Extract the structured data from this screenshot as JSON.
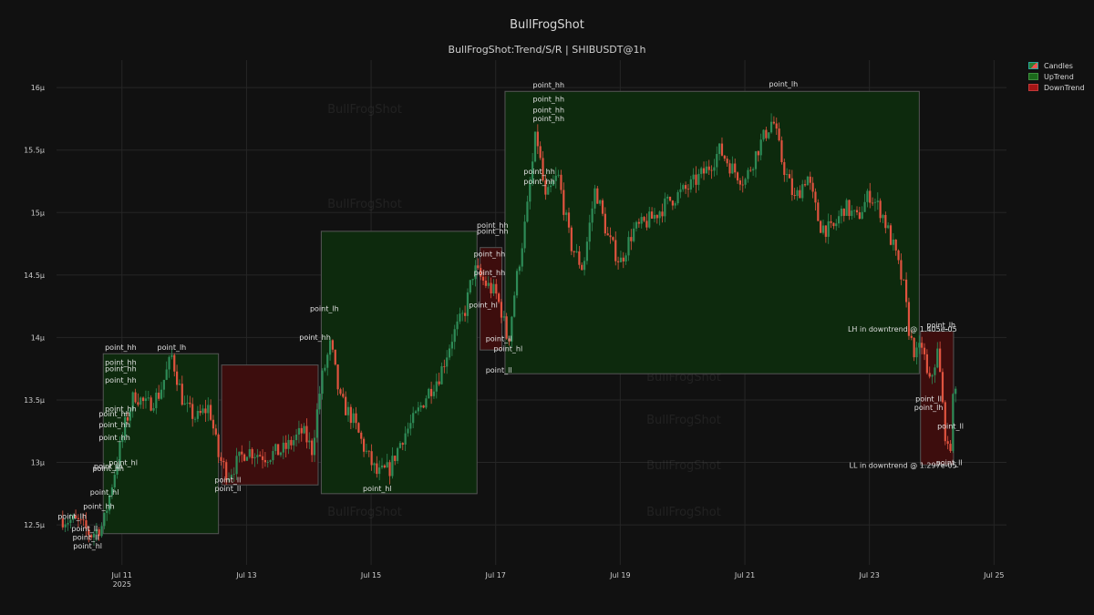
{
  "title": "BullFrogShot",
  "subtitle": "BullFrogShot:Trend/S/R | SHIBUSDT@1h",
  "watermark": "BullFrogShot",
  "legend": [
    {
      "label": "Candles",
      "kind": "candles"
    },
    {
      "label": "UpTrend",
      "kind": "up"
    },
    {
      "label": "DownTrend",
      "kind": "down"
    }
  ],
  "colors": {
    "background": "#111111",
    "grid": "#262626",
    "up_candle": "#2e8b57",
    "down_candle": "#e0533f",
    "uptrend_fill": "#0d2a0d",
    "downtrend_fill": "#3d0d0d",
    "zone_border": "#555555",
    "text": "#cccccc"
  },
  "chart_data": {
    "type": "candlestick",
    "x_ticks": [
      {
        "day": 11,
        "label": "Jul 11",
        "sublabel": "2025"
      },
      {
        "day": 13,
        "label": "Jul 13"
      },
      {
        "day": 15,
        "label": "Jul 15"
      },
      {
        "day": 17,
        "label": "Jul 17"
      },
      {
        "day": 19,
        "label": "Jul 19"
      },
      {
        "day": 21,
        "label": "Jul 21"
      },
      {
        "day": 23,
        "label": "Jul 23"
      },
      {
        "day": 25,
        "label": "Jul 25"
      }
    ],
    "x_range": [
      9.95,
      25.2
    ],
    "y_ticks": [
      {
        "value": 12.5,
        "label": "12.5µ"
      },
      {
        "value": 13.0,
        "label": "13µ"
      },
      {
        "value": 13.5,
        "label": "13.5µ"
      },
      {
        "value": 14.0,
        "label": "14µ"
      },
      {
        "value": 14.5,
        "label": "14.5µ"
      },
      {
        "value": 15.0,
        "label": "15µ"
      },
      {
        "value": 15.5,
        "label": "15.5µ"
      },
      {
        "value": 16.0,
        "label": "16µ"
      }
    ],
    "y_range": [
      12.18,
      16.22
    ],
    "y_unit": "µ",
    "trend_zones": [
      {
        "type": "up",
        "x0": 10.7,
        "x1": 12.55,
        "y0": 12.43,
        "y1": 13.87
      },
      {
        "type": "down",
        "x0": 12.6,
        "x1": 14.15,
        "y0": 12.82,
        "y1": 13.78
      },
      {
        "type": "up",
        "x0": 14.2,
        "x1": 16.7,
        "y0": 12.75,
        "y1": 14.85
      },
      {
        "type": "down",
        "x0": 16.75,
        "x1": 17.1,
        "y0": 13.9,
        "y1": 14.72
      },
      {
        "type": "up",
        "x0": 17.15,
        "x1": 23.8,
        "y0": 13.71,
        "y1": 15.97
      },
      {
        "type": "down",
        "x0": 23.82,
        "x1": 24.35,
        "y0": 12.98,
        "y1": 14.05
      }
    ],
    "price_path": [
      [
        10.05,
        12.55
      ],
      [
        10.3,
        12.52
      ],
      [
        10.5,
        12.42
      ],
      [
        10.7,
        12.5
      ],
      [
        10.85,
        12.85
      ],
      [
        11.05,
        13.3
      ],
      [
        11.2,
        13.55
      ],
      [
        11.4,
        13.45
      ],
      [
        11.6,
        13.55
      ],
      [
        11.8,
        13.85
      ],
      [
        12.0,
        13.45
      ],
      [
        12.2,
        13.35
      ],
      [
        12.4,
        13.45
      ],
      [
        12.55,
        13.05
      ],
      [
        12.7,
        12.9
      ],
      [
        13.0,
        13.1
      ],
      [
        13.3,
        13.05
      ],
      [
        13.6,
        13.1
      ],
      [
        13.9,
        13.25
      ],
      [
        14.05,
        13.1
      ],
      [
        14.2,
        13.65
      ],
      [
        14.35,
        13.95
      ],
      [
        14.5,
        13.5
      ],
      [
        14.7,
        13.35
      ],
      [
        14.9,
        13.1
      ],
      [
        15.1,
        12.9
      ],
      [
        15.3,
        12.95
      ],
      [
        15.5,
        13.2
      ],
      [
        15.7,
        13.35
      ],
      [
        15.9,
        13.55
      ],
      [
        16.1,
        13.7
      ],
      [
        16.3,
        14.0
      ],
      [
        16.5,
        14.2
      ],
      [
        16.65,
        14.55
      ],
      [
        16.8,
        14.45
      ],
      [
        17.0,
        14.35
      ],
      [
        17.1,
        14.2
      ],
      [
        17.2,
        13.95
      ],
      [
        17.3,
        14.35
      ],
      [
        17.5,
        15.0
      ],
      [
        17.65,
        15.65
      ],
      [
        17.8,
        15.1
      ],
      [
        18.0,
        15.3
      ],
      [
        18.2,
        14.75
      ],
      [
        18.4,
        14.55
      ],
      [
        18.6,
        15.2
      ],
      [
        18.8,
        14.8
      ],
      [
        19.0,
        14.6
      ],
      [
        19.2,
        14.85
      ],
      [
        19.5,
        14.95
      ],
      [
        19.8,
        15.1
      ],
      [
        20.1,
        15.2
      ],
      [
        20.4,
        15.35
      ],
      [
        20.6,
        15.5
      ],
      [
        20.8,
        15.35
      ],
      [
        21.0,
        15.25
      ],
      [
        21.2,
        15.5
      ],
      [
        21.45,
        15.75
      ],
      [
        21.6,
        15.4
      ],
      [
        21.8,
        15.1
      ],
      [
        22.0,
        15.3
      ],
      [
        22.2,
        14.9
      ],
      [
        22.4,
        14.85
      ],
      [
        22.6,
        15.05
      ],
      [
        22.8,
        14.95
      ],
      [
        23.0,
        15.15
      ],
      [
        23.2,
        15.0
      ],
      [
        23.4,
        14.7
      ],
      [
        23.55,
        14.4
      ],
      [
        23.65,
        14.0
      ],
      [
        23.75,
        13.85
      ],
      [
        23.85,
        13.95
      ],
      [
        23.95,
        13.6
      ],
      [
        24.1,
        13.9
      ],
      [
        24.2,
        13.3
      ],
      [
        24.28,
        13.0
      ],
      [
        24.35,
        13.55
      ],
      [
        24.4,
        13.58
      ]
    ],
    "point_labels": [
      {
        "text": "point_lh",
        "x": 11.8,
        "y": 13.9
      },
      {
        "text": "point_hh",
        "x": 10.98,
        "y": 13.9
      },
      {
        "text": "point_hh",
        "x": 10.98,
        "y": 13.78
      },
      {
        "text": "point_hh",
        "x": 10.98,
        "y": 13.73
      },
      {
        "text": "point_hh",
        "x": 10.98,
        "y": 13.64
      },
      {
        "text": "point_hh",
        "x": 10.98,
        "y": 13.41
      },
      {
        "text": "point_hh",
        "x": 10.88,
        "y": 13.37
      },
      {
        "text": "point_hh",
        "x": 10.88,
        "y": 13.28
      },
      {
        "text": "point_hh",
        "x": 10.88,
        "y": 13.18
      },
      {
        "text": "point_hl",
        "x": 11.02,
        "y": 12.98
      },
      {
        "text": "point_hh",
        "x": 10.78,
        "y": 12.93
      },
      {
        "text": "point_lh",
        "x": 10.78,
        "y": 12.95
      },
      {
        "text": "point_hl",
        "x": 10.72,
        "y": 12.74
      },
      {
        "text": "point_hh",
        "x": 10.63,
        "y": 12.63
      },
      {
        "text": "point_lh",
        "x": 10.2,
        "y": 12.55
      },
      {
        "text": "point_ll",
        "x": 10.4,
        "y": 12.45
      },
      {
        "text": "point_ll",
        "x": 10.42,
        "y": 12.38
      },
      {
        "text": "point_hl",
        "x": 10.45,
        "y": 12.31
      },
      {
        "text": "point_ll",
        "x": 12.7,
        "y": 12.84
      },
      {
        "text": "point_ll",
        "x": 12.7,
        "y": 12.77
      },
      {
        "text": "point_lh",
        "x": 14.25,
        "y": 14.21
      },
      {
        "text": "point_hh",
        "x": 14.1,
        "y": 13.98
      },
      {
        "text": "point_hl",
        "x": 15.1,
        "y": 12.77
      },
      {
        "text": "point_hh",
        "x": 16.95,
        "y": 14.88
      },
      {
        "text": "point_hh",
        "x": 16.95,
        "y": 14.83
      },
      {
        "text": "point_hh",
        "x": 16.9,
        "y": 14.65
      },
      {
        "text": "point_hh",
        "x": 16.9,
        "y": 14.5
      },
      {
        "text": "point_hl",
        "x": 16.8,
        "y": 14.24
      },
      {
        "text": "point_ll",
        "x": 17.05,
        "y": 13.97
      },
      {
        "text": "point_hl",
        "x": 17.2,
        "y": 13.89
      },
      {
        "text": "point_ll",
        "x": 17.05,
        "y": 13.72
      },
      {
        "text": "point_hh",
        "x": 17.85,
        "y": 16.0
      },
      {
        "text": "point_hh",
        "x": 17.85,
        "y": 15.89
      },
      {
        "text": "point_hh",
        "x": 17.85,
        "y": 15.8
      },
      {
        "text": "point_hh",
        "x": 17.85,
        "y": 15.73
      },
      {
        "text": "point_hh",
        "x": 17.7,
        "y": 15.31
      },
      {
        "text": "point_hh",
        "x": 17.7,
        "y": 15.23
      },
      {
        "text": "point_lh",
        "x": 21.62,
        "y": 16.01
      },
      {
        "text": "point_lh",
        "x": 24.15,
        "y": 14.08
      },
      {
        "text": "point_ll",
        "x": 23.95,
        "y": 13.49
      },
      {
        "text": "point_lh",
        "x": 23.95,
        "y": 13.42
      },
      {
        "text": "point_ll",
        "x": 24.3,
        "y": 13.27
      },
      {
        "text": "point_ll",
        "x": 24.28,
        "y": 12.98
      }
    ],
    "annotations": [
      {
        "text": "LH in downtrend @ 1.405e-05",
        "x": 23.82,
        "y": 14.07,
        "anchor": "end"
      },
      {
        "text": "LL in downtrend @ 1.297e-05",
        "x": 23.82,
        "y": 12.98,
        "anchor": "end"
      }
    ]
  }
}
